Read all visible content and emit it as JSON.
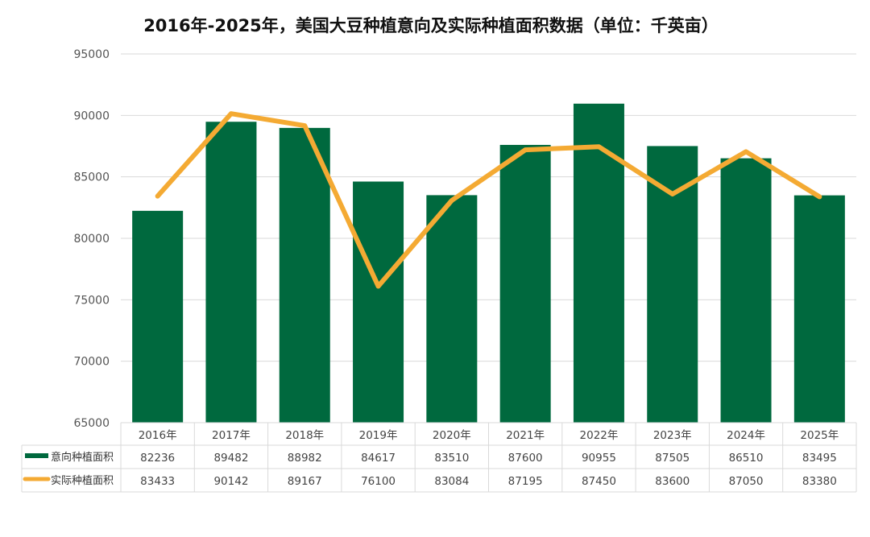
{
  "title": "2016年-2025年，美国大豆种植意向及实际种植面积数据（单位：千英亩）",
  "chart_data": {
    "type": "bar",
    "title": "2016年-2025年，美国大豆种植意向及实际种植面积数据（单位：千英亩）",
    "categories": [
      "2016年",
      "2017年",
      "2018年",
      "2019年",
      "2020年",
      "2021年",
      "2022年",
      "2023年",
      "2024年",
      "2025年"
    ],
    "ylim": [
      65000,
      95000
    ],
    "yticks": [
      95000,
      90000,
      85000,
      80000,
      75000,
      70000,
      65000
    ],
    "grid": true,
    "legend_placement": "data-table",
    "series": [
      {
        "name": "意向种植面积",
        "type": "bar",
        "color": "#00693e",
        "values": [
          82236,
          89482,
          88982,
          84617,
          83510,
          87600,
          90955,
          87505,
          86510,
          83495
        ]
      },
      {
        "name": "实际种植面积",
        "type": "line",
        "color": "#f4aa33",
        "values": [
          83433,
          90142,
          89167,
          76100,
          83084,
          87195,
          87450,
          83600,
          87050,
          83380
        ]
      }
    ]
  }
}
